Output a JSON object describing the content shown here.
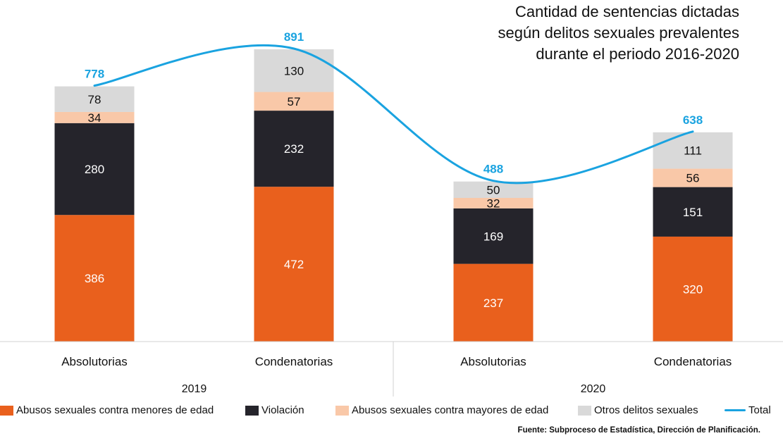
{
  "title_lines": [
    "Cantidad de sentencias dictadas",
    "según delitos sexuales prevalentes",
    "durante el periodo 2016-2020"
  ],
  "source": "Fuente: Subproceso de Estadística, Dirección de Planificación.",
  "chart_data": {
    "type": "bar",
    "stacked": true,
    "categories": [
      "Absolutorias",
      "Condenatorias",
      "Absolutorias",
      "Condenatorias"
    ],
    "groups": [
      {
        "label": "2019",
        "categories": [
          0,
          1
        ]
      },
      {
        "label": "2020",
        "categories": [
          2,
          3
        ]
      }
    ],
    "series": [
      {
        "name": "Abusos sexuales contra menores de edad",
        "color": "#e9601d",
        "label_color": "#ffffff",
        "values": [
          386,
          472,
          237,
          320
        ]
      },
      {
        "name": "Violación",
        "color": "#25242b",
        "label_color": "#ffffff",
        "values": [
          280,
          232,
          169,
          151
        ]
      },
      {
        "name": "Abusos sexuales contra mayores de edad",
        "color": "#f9c8a8",
        "label_color": "#111111",
        "values": [
          34,
          57,
          32,
          56
        ]
      },
      {
        "name": "Otros delitos sexuales",
        "color": "#d9d9d9",
        "label_color": "#111111",
        "values": [
          78,
          130,
          50,
          111
        ]
      }
    ],
    "total": {
      "name": "Total",
      "color": "#1aa3e0",
      "values": [
        778,
        891,
        488,
        638
      ]
    },
    "ylim": [
      0,
      891
    ],
    "grid": false,
    "legend_position": "bottom"
  }
}
